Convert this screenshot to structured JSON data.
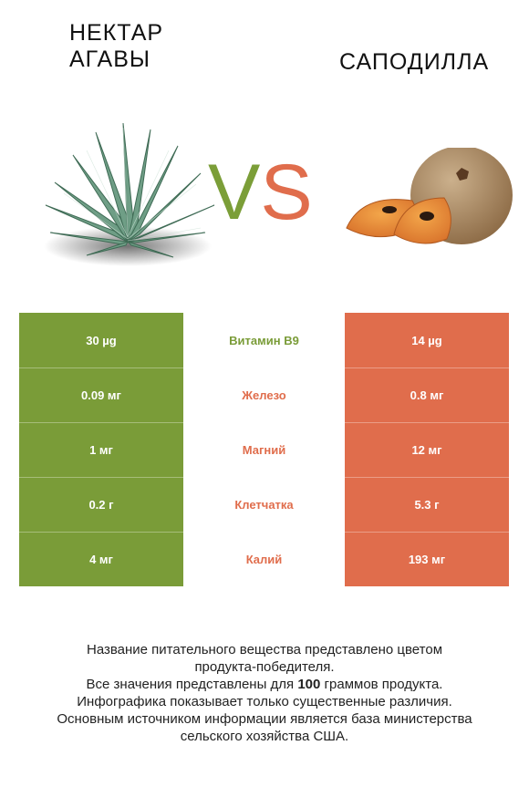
{
  "left_food": {
    "title_line1": "НЕКТАР",
    "title_line2": "АГАВЫ",
    "color": "#7a9c38"
  },
  "right_food": {
    "title": "САПОДИЛЛА",
    "color": "#e06d4c"
  },
  "vs": {
    "v": "V",
    "s": "S"
  },
  "rows": [
    {
      "left": "30 µg",
      "nutrient": "Витамин B9",
      "right": "14 µg",
      "winner": "left"
    },
    {
      "left": "0.09 мг",
      "nutrient": "Железо",
      "right": "0.8 мг",
      "winner": "right"
    },
    {
      "left": "1 мг",
      "nutrient": "Магний",
      "right": "12 мг",
      "winner": "right"
    },
    {
      "left": "0.2 г",
      "nutrient": "Клетчатка",
      "right": "5.3 г",
      "winner": "right"
    },
    {
      "left": "4 мг",
      "nutrient": "Калий",
      "right": "193 мг",
      "winner": "right"
    }
  ],
  "footer": {
    "line1": "Название питательного вещества представлено цветом",
    "line2": "продукта-победителя.",
    "line3_pre": "Все значения представлены для ",
    "line3_bold": "100",
    "line3_post": " граммов продукта.",
    "line4": "Инфографика показывает только существенные различия.",
    "line5": "Основным источником информации является база министерства",
    "line6": "сельского хозяйства США."
  }
}
